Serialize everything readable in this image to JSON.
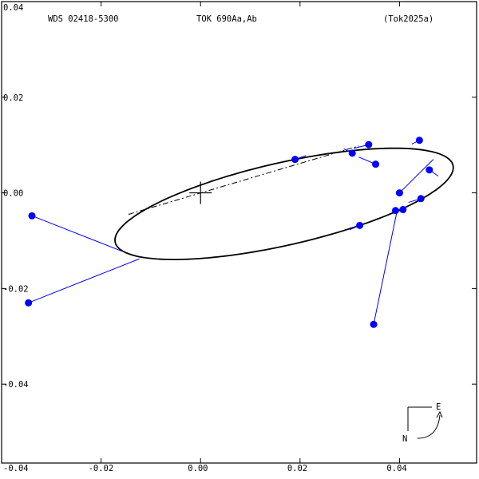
{
  "header": {
    "left": "WDS 02418-5300",
    "center": "TOK 690Aa,Ab",
    "right": "(Tok2025a)"
  },
  "compass": {
    "east_label": "E",
    "north_label": "N"
  },
  "chart_data": {
    "type": "scatter",
    "title": "",
    "xlabel": "",
    "ylabel": "",
    "xlim": [
      -0.04,
      0.0555
    ],
    "ylim": [
      -0.0565,
      0.04
    ],
    "x_ticks": [
      {
        "value": -0.04,
        "label": "-0.04"
      },
      {
        "value": -0.02,
        "label": "-0.02"
      },
      {
        "value": 0.0,
        "label": "0.00"
      },
      {
        "value": 0.02,
        "label": "0.02"
      },
      {
        "value": 0.04,
        "label": "0.04"
      }
    ],
    "y_ticks": [
      {
        "value": 0.04,
        "label": "0.04"
      },
      {
        "value": 0.02,
        "label": "0.02"
      },
      {
        "value": 0.0,
        "label": "0.00"
      },
      {
        "value": -0.02,
        "label": "-0.02"
      },
      {
        "value": -0.04,
        "label": "-0.04"
      }
    ],
    "primary": [
      0,
      0
    ],
    "orbit_color": "#000000",
    "point_color": "#0000ff",
    "orbit_ellipse": {
      "center": [
        0.0168,
        -0.0023
      ],
      "semi_major": 0.0349,
      "semi_minor": 0.0086,
      "angle_deg": 13.4
    },
    "line_of_nodes": [
      [
        -0.0145,
        -0.0045
      ],
      [
        0.0318,
        0.0098
      ]
    ],
    "observations": [
      {
        "obs": [
          -0.0339,
          -0.0048
        ],
        "pred": [
          -0.0158,
          -0.0122
        ]
      },
      {
        "obs": [
          -0.0346,
          -0.023
        ],
        "pred": [
          -0.0123,
          -0.0138
        ]
      },
      {
        "obs": [
          0.019,
          0.007
        ],
        "pred": [
          0.0212,
          0.0078
        ]
      },
      {
        "obs": [
          0.0305,
          0.0083
        ],
        "pred": [
          0.0288,
          0.0092
        ]
      },
      {
        "obs": [
          0.0338,
          0.0101
        ],
        "pred": [
          0.0308,
          0.0093
        ]
      },
      {
        "obs": [
          0.0352,
          0.006
        ],
        "pred": [
          0.0318,
          0.0075
        ]
      },
      {
        "obs": [
          0.044,
          0.011
        ],
        "pred": [
          0.0425,
          0.0102
        ]
      },
      {
        "obs": [
          0.046,
          0.0048
        ],
        "pred": [
          0.0478,
          0.0035
        ]
      },
      {
        "obs": [
          0.04,
          0.0
        ],
        "pred": [
          0.0468,
          0.007
        ]
      },
      {
        "obs": [
          0.0443,
          -0.0012
        ],
        "pred": [
          0.0418,
          -0.002
        ]
      },
      {
        "obs": [
          0.0407,
          -0.0035
        ],
        "pred": [
          0.04,
          -0.0038
        ]
      },
      {
        "obs": [
          0.0392,
          -0.0037
        ],
        "pred": [
          0.0395,
          -0.0038
        ]
      },
      {
        "obs": [
          0.032,
          -0.0068
        ],
        "pred": [
          0.03,
          -0.0077
        ]
      },
      {
        "obs": [
          0.0348,
          -0.0275
        ],
        "pred": [
          0.0395,
          -0.0038
        ]
      }
    ]
  }
}
